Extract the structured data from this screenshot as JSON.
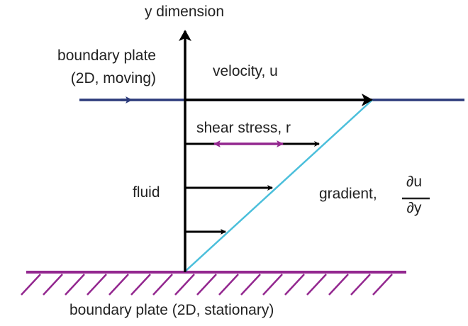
{
  "labels": {
    "y_axis": "y dimension",
    "top_plate_line1": "boundary  plate",
    "top_plate_line2": "(2D, moving)",
    "velocity": "velocity, u",
    "shear_stress": "shear stress, r",
    "fluid": "fluid",
    "gradient": "gradient,",
    "gradient_numerator": "∂u",
    "gradient_denominator": "∂y",
    "bottom_plate": "boundary  plate (2D, stationary)"
  },
  "colors": {
    "moving_plate": "#2b3a7a",
    "stationary_plate": "#93278f",
    "shear_arrow": "#93278f",
    "velocity_profile": "#4bbfdb",
    "arrows": "#000000"
  }
}
